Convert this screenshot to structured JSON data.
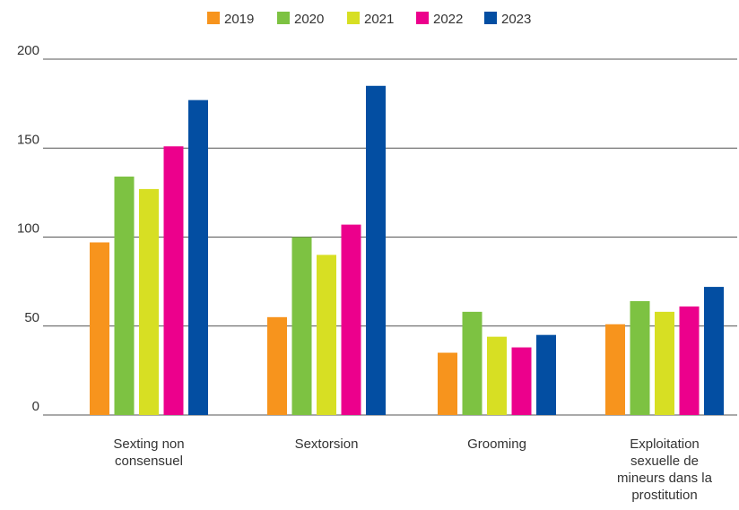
{
  "chart_data": {
    "type": "bar",
    "title": "",
    "xlabel": "",
    "ylabel": "",
    "ylim": [
      0,
      200
    ],
    "y_ticks": [
      "0",
      "50",
      "100",
      "150",
      "200"
    ],
    "grid": true,
    "legend_position": "top-center",
    "categories": [
      [
        "Sexting non",
        "consensuel"
      ],
      [
        "Sextorsion"
      ],
      [
        "Grooming"
      ],
      [
        "Exploitation",
        "sexuelle de",
        "mineurs dans la",
        "prostitution"
      ]
    ],
    "series": [
      {
        "name": "2019",
        "color": "#f7941d",
        "values": [
          97,
          55,
          35,
          51
        ]
      },
      {
        "name": "2020",
        "color": "#7dc242",
        "values": [
          134,
          100,
          58,
          64
        ]
      },
      {
        "name": "2021",
        "color": "#d7df23",
        "values": [
          127,
          90,
          44,
          58
        ]
      },
      {
        "name": "2022",
        "color": "#ec008c",
        "values": [
          151,
          107,
          38,
          61
        ]
      },
      {
        "name": "2023",
        "color": "#034ea2",
        "values": [
          177,
          185,
          45,
          72
        ]
      }
    ]
  }
}
